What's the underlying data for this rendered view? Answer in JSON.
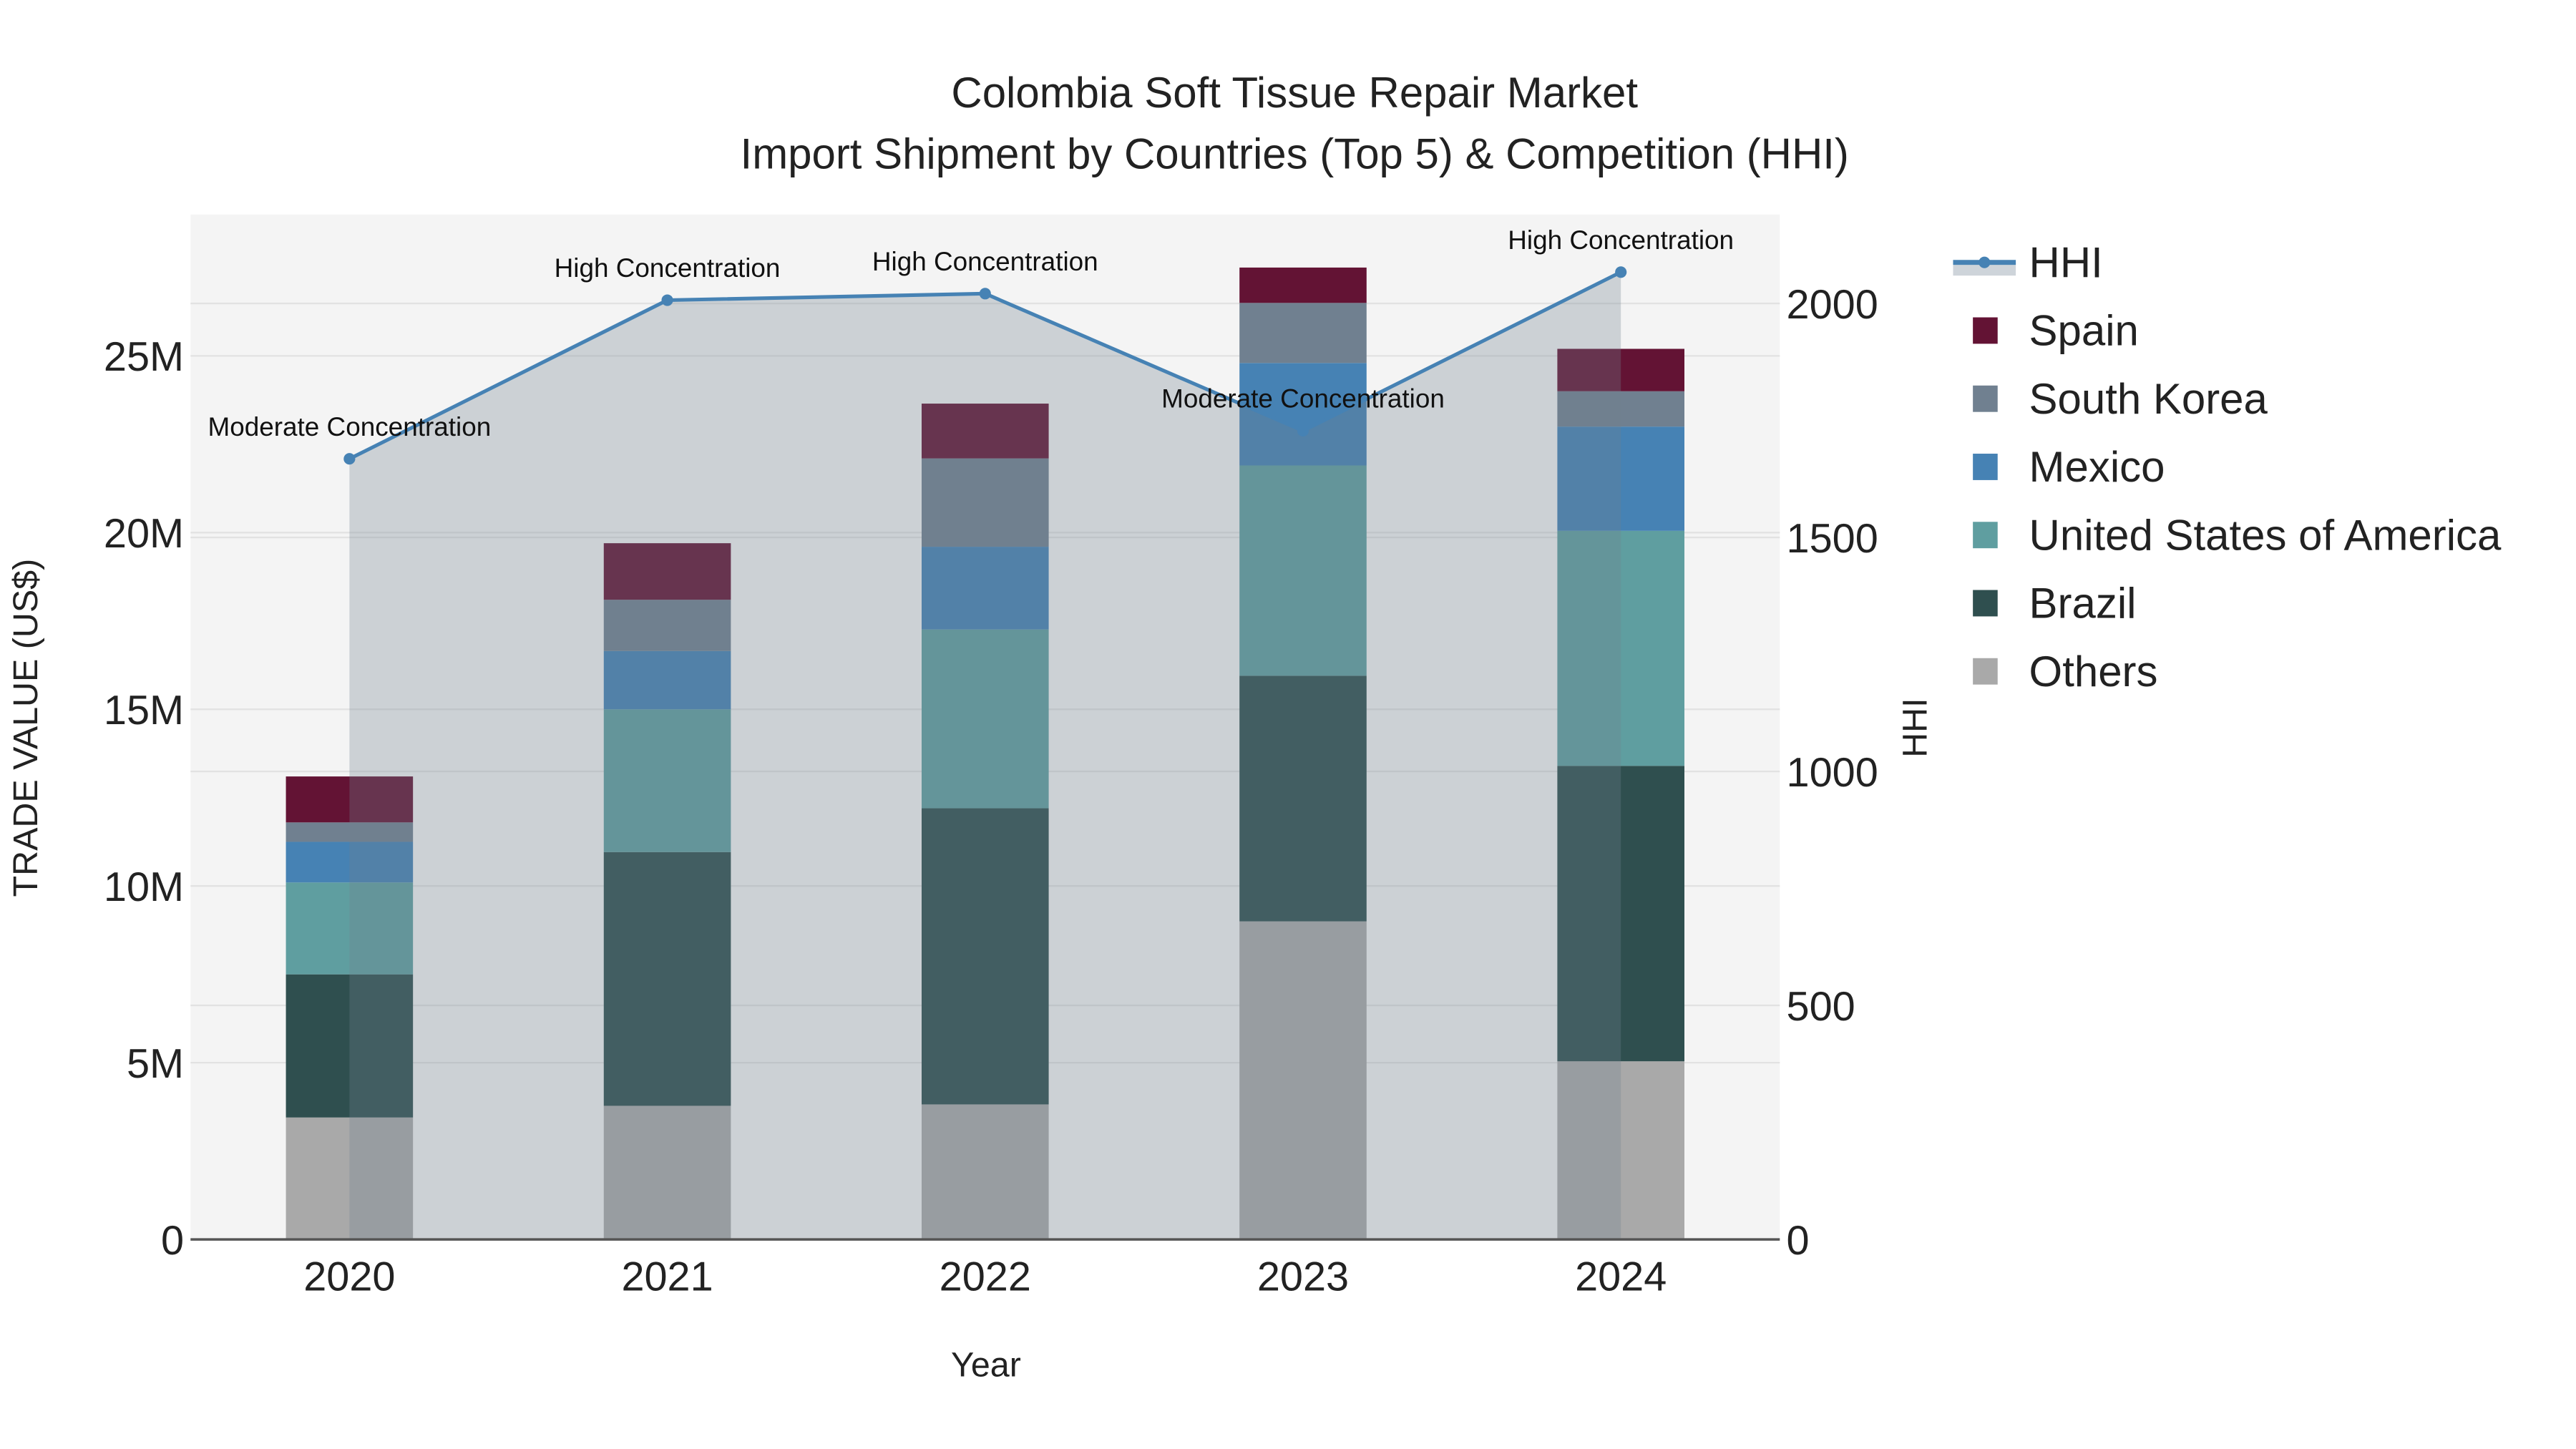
{
  "chart_data": {
    "type": "bar",
    "title_line1": "Colombia Soft Tissue Repair Market",
    "title_line2": "Import Shipment by Countries (Top 5) & Competition (HHI)",
    "xlabel": "Year",
    "ylabel": "TRADE VALUE (US$)",
    "y2label": "HHI",
    "categories": [
      "2020",
      "2021",
      "2022",
      "2023",
      "2024"
    ],
    "ylim": [
      0,
      29000000
    ],
    "y_ticks": [
      0,
      5000000,
      10000000,
      15000000,
      20000000,
      25000000
    ],
    "y_tick_labels": [
      "0",
      "5M",
      "10M",
      "15M",
      "20M",
      "25M"
    ],
    "y2lim": [
      0,
      2190
    ],
    "y2_ticks": [
      0,
      500,
      1000,
      1500,
      2000
    ],
    "y2_tick_labels": [
      "0",
      "500",
      "1000",
      "1500",
      "2000"
    ],
    "grid": true,
    "legend_position": "right",
    "series": [
      {
        "name": "Others",
        "color": "#a9a9a9",
        "values": [
          3450000,
          3780000,
          3820000,
          9000000,
          5040000
        ]
      },
      {
        "name": "Brazil",
        "color": "#2f4f4f",
        "values": [
          4050000,
          7180000,
          8380000,
          6950000,
          8360000
        ]
      },
      {
        "name": "United States of America",
        "color": "#5f9ea0",
        "values": [
          2600000,
          4040000,
          5060000,
          5950000,
          6650000
        ]
      },
      {
        "name": "Mexico",
        "color": "#4682b4",
        "values": [
          1150000,
          1650000,
          2340000,
          2900000,
          2950000
        ]
      },
      {
        "name": "South Korea",
        "color": "#708090",
        "values": [
          550000,
          1450000,
          2500000,
          1700000,
          1000000
        ]
      },
      {
        "name": "Spain",
        "color": "#631334",
        "values": [
          1300000,
          1600000,
          1550000,
          1000000,
          1200000
        ]
      }
    ],
    "hhi": {
      "name": "HHI",
      "color": "#4682b4",
      "values": [
        1668,
        2007,
        2021,
        1728,
        2067
      ],
      "annotations": [
        "Moderate Concentration",
        "High Concentration",
        "High Concentration",
        "Moderate Concentration",
        "High Concentration"
      ]
    },
    "legend_order": [
      "HHI",
      "Spain",
      "South Korea",
      "Mexico",
      "United States of America",
      "Brazil",
      "Others"
    ]
  }
}
